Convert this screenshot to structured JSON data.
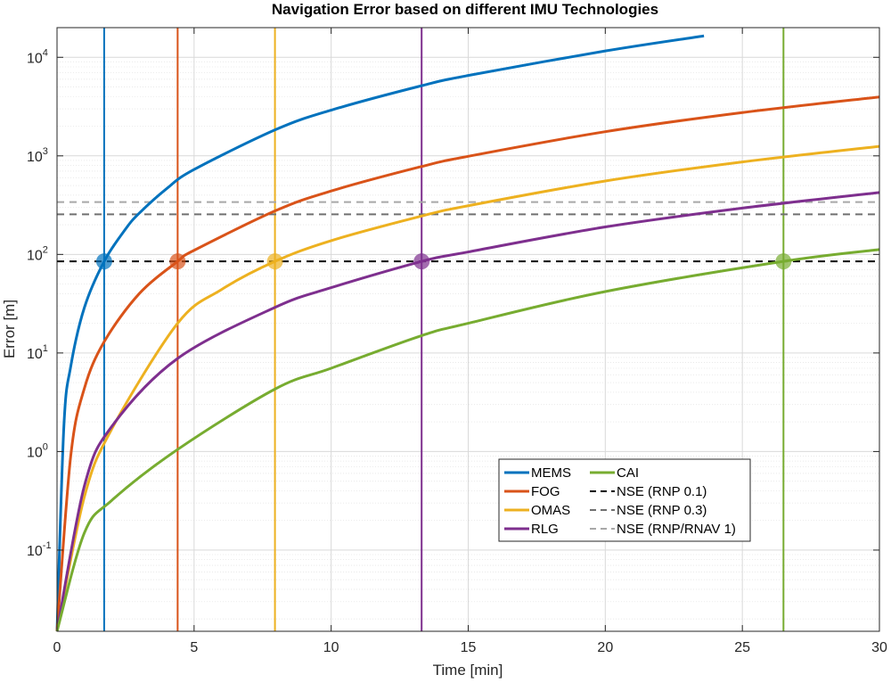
{
  "chart_data": {
    "type": "line",
    "title": "Navigation Error based on different IMU Technologies",
    "xlabel": "Time [min]",
    "ylabel": "Error [m]",
    "xlim": [
      0,
      30
    ],
    "ylim": [
      0.015,
      20000
    ],
    "yscale": "log",
    "grid": true,
    "minor_grid_y": true,
    "legend_position": "bottom-right",
    "legend_columns": 2,
    "x_ticks": [
      0,
      5,
      10,
      15,
      20,
      25,
      30
    ],
    "y_ticks": [
      {
        "value": 0.1,
        "base": "10",
        "exp": "-1"
      },
      {
        "value": 1,
        "base": "10",
        "exp": "0"
      },
      {
        "value": 10,
        "base": "10",
        "exp": "1"
      },
      {
        "value": 100,
        "base": "10",
        "exp": "2"
      },
      {
        "value": 1000,
        "base": "10",
        "exp": "3"
      },
      {
        "value": 10000,
        "base": "10",
        "exp": "4"
      }
    ],
    "series": [
      {
        "name": "MEMS",
        "color": "#0072BD",
        "kind": "curve",
        "x": [
          0,
          0.25,
          0.5,
          1,
          1.72,
          2.5,
          3,
          4,
          5,
          8,
          10,
          13.3,
          15,
          20,
          23.6
        ],
        "y": [
          0.015,
          1.8,
          7.3,
          29,
          85,
          181,
          262,
          465,
          727,
          1860,
          2910,
          5150,
          6540,
          11600,
          16500
        ]
      },
      {
        "name": "FOG",
        "color": "#D95319",
        "kind": "curve",
        "x": [
          0,
          0.5,
          1,
          1.72,
          3,
          4.4,
          5,
          8,
          10,
          13.3,
          15,
          20,
          25,
          30
        ],
        "y": [
          0.015,
          0.9,
          4.4,
          13,
          40,
          85,
          110,
          280,
          440,
          780,
          990,
          1760,
          2750,
          3960
        ]
      },
      {
        "name": "OMAS",
        "color": "#EDB120",
        "kind": "curve",
        "x": [
          0,
          1,
          2,
          4.4,
          6,
          7.95,
          10,
          13.3,
          15,
          20,
          25,
          30
        ],
        "y": [
          0.015,
          0.35,
          1.7,
          20,
          44,
          85,
          138,
          245,
          312,
          556,
          868,
          1250
        ]
      },
      {
        "name": "RLG",
        "color": "#7E2F8E",
        "kind": "curve",
        "x": [
          0,
          1,
          2,
          4.4,
          7.95,
          10,
          13.3,
          15,
          20,
          25,
          30
        ],
        "y": [
          0.015,
          0.45,
          1.8,
          8.8,
          29,
          46,
          85,
          106,
          190,
          295,
          425
        ]
      },
      {
        "name": "CAI",
        "color": "#77AC30",
        "kind": "curve",
        "x": [
          0,
          1,
          2,
          4.4,
          7.95,
          10,
          13.3,
          15,
          20,
          26.5,
          30
        ],
        "y": [
          0.015,
          0.15,
          0.32,
          1.05,
          4.3,
          7,
          15,
          20,
          42,
          85,
          112
        ]
      },
      {
        "name": "NSE (RNP 0.1)",
        "color": "#000000",
        "kind": "hline",
        "y": 85
      },
      {
        "name": "NSE (RNP 0.3)",
        "color": "#707070",
        "kind": "hline",
        "y": 255
      },
      {
        "name": "NSE (RNP/RNAV 1)",
        "color": "#A8A8A8",
        "kind": "hline",
        "y": 340
      }
    ],
    "intersections": [
      {
        "series": "MEMS",
        "x": 1.72,
        "y": 85,
        "color": "#0072BD"
      },
      {
        "series": "FOG",
        "x": 4.4,
        "y": 85,
        "color": "#D95319"
      },
      {
        "series": "OMAS",
        "x": 7.95,
        "y": 85,
        "color": "#EDB120"
      },
      {
        "series": "RLG",
        "x": 13.3,
        "y": 85,
        "color": "#7E2F8E"
      },
      {
        "series": "CAI",
        "x": 26.5,
        "y": 85,
        "color": "#77AC30"
      }
    ],
    "legend_order": [
      "MEMS",
      "CAI",
      "FOG",
      "NSE (RNP 0.1)",
      "OMAS",
      "NSE (RNP 0.3)",
      "RLG",
      "NSE (RNP/RNAV 1)"
    ]
  }
}
